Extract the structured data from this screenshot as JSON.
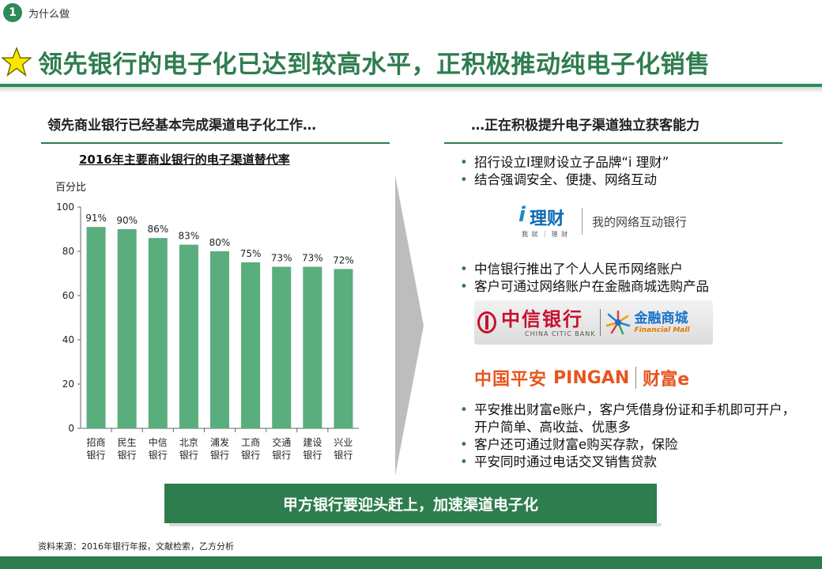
{
  "header": {
    "section_number": "1",
    "section_label": "为什么做"
  },
  "page_title": "领先银行的电子化已达到较高水平，正积极推动纯电子化销售",
  "left": {
    "heading": "领先商业银行已经基本完成渠道电子化工作…",
    "chart_title": "2016年主要商业银行的电子渠道替代率",
    "unit": "百分比"
  },
  "right": {
    "heading": "…正在积极提升电子渠道独立获客能力",
    "group1": [
      "招行设立I理财设立子品牌“i 理财”",
      "结合强调安全、便捷、网络互动"
    ],
    "group2": [
      "中信银行推出了个人人民币网络账户",
      "客户可通过网络账户在金融商城选购产品"
    ],
    "group3": [
      "平安推出财富e账户，客户凭借身份证和手机即可开户，开户简单、高收益、优惠多",
      "客户还可通过财富e购买存款，保险",
      "平安同时通过电话交叉销售贷款"
    ]
  },
  "logos": {
    "ilicai": {
      "i": "i",
      "word": "理财",
      "sub": "我 就 ｜ 理 财",
      "slogan": "我的网络互动银行"
    },
    "citic": {
      "cn": "中信银行",
      "en": "CHINA CITIC BANK",
      "mall_cn": "金融商城",
      "mall_en": "Financial Mall"
    },
    "pingan": {
      "cn": "中国平安",
      "en": "PINGAN",
      "fortune": "财富e"
    }
  },
  "cta": "甲方银行要迎头赶上，加速渠道电子化",
  "source": "资料来源：2016年银行年报，文献检索，乙方分析",
  "colors": {
    "brand_green": "#2e7d4f",
    "bar_green": "#5aad7c",
    "arrow_grey": "#bdbdbd"
  },
  "chart_data": {
    "type": "bar",
    "categories": [
      [
        "招商",
        "银行"
      ],
      [
        "民生",
        "银行"
      ],
      [
        "中信",
        "银行"
      ],
      [
        "北京",
        "银行"
      ],
      [
        "浦发",
        "银行"
      ],
      [
        "工商",
        "银行"
      ],
      [
        "交通",
        "银行"
      ],
      [
        "建设",
        "银行"
      ],
      [
        "兴业",
        "银行"
      ]
    ],
    "values": [
      91,
      90,
      86,
      83,
      80,
      75,
      73,
      73,
      72
    ],
    "value_labels": [
      "91%",
      "90%",
      "86%",
      "83%",
      "80%",
      "75%",
      "73%",
      "73%",
      "72%"
    ],
    "ylabel": "百分比",
    "ylim": [
      0,
      100
    ],
    "yticks": [
      0,
      20,
      40,
      60,
      80,
      100
    ],
    "grid": false,
    "legend": "none"
  }
}
